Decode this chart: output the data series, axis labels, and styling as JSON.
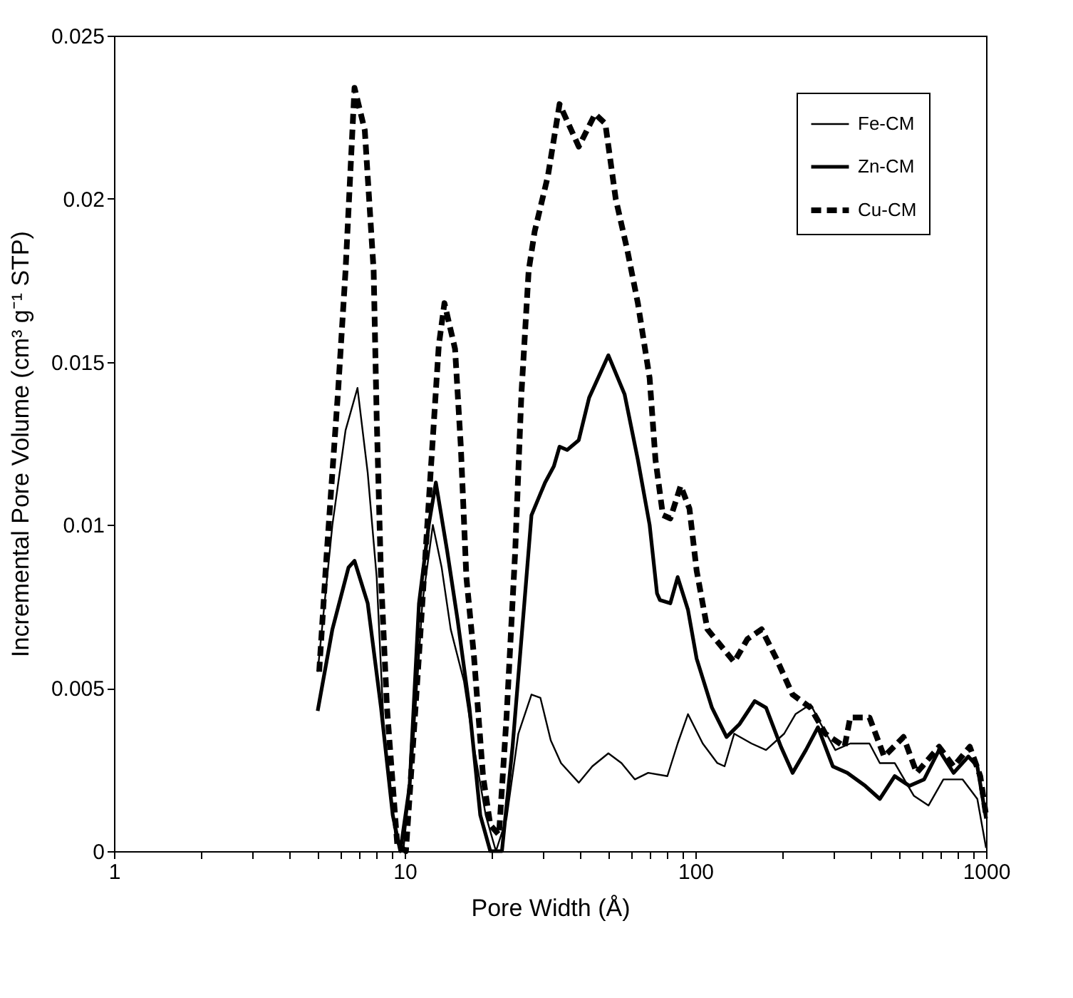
{
  "chart_data": {
    "type": "line",
    "xlabel": "Pore Width (Å)",
    "ylabel": "Incremental Pore Volume (cm³ g⁻¹ STP)",
    "log": "x",
    "xlim": [
      1,
      1000
    ],
    "ylim": [
      0,
      0.025
    ],
    "xticks": [
      1,
      {
        "value": 2,
        "label": null
      },
      {
        "value": 3,
        "label": null
      },
      {
        "value": 4,
        "label": null
      },
      {
        "value": 5,
        "label": null
      },
      {
        "value": 6,
        "label": null
      },
      {
        "value": 7,
        "label": null
      },
      {
        "value": 8,
        "label": null
      },
      {
        "value": 9,
        "label": null
      },
      10,
      {
        "value": 20,
        "label": null
      },
      {
        "value": 30,
        "label": null
      },
      {
        "value": 40,
        "label": null
      },
      {
        "value": 50,
        "label": null
      },
      {
        "value": 60,
        "label": null
      },
      {
        "value": 70,
        "label": null
      },
      {
        "value": 80,
        "label": null
      },
      {
        "value": 90,
        "label": null
      },
      100,
      {
        "value": 200,
        "label": null
      },
      {
        "value": 300,
        "label": null
      },
      {
        "value": 400,
        "label": null
      },
      {
        "value": 500,
        "label": null
      },
      {
        "value": 600,
        "label": null
      },
      {
        "value": 700,
        "label": null
      },
      {
        "value": 800,
        "label": null
      },
      {
        "value": 900,
        "label": null
      },
      1000
    ],
    "yticks": [
      0,
      0.005,
      0.01,
      0.015,
      0.02,
      0.025
    ],
    "grid": false,
    "legend": "top right",
    "series": [
      {
        "name": "Fe-CM",
        "color": "#000000",
        "line_style": "solid",
        "x": [
          5.02,
          5.64,
          6.26,
          6.88,
          7.46,
          8.01,
          8.49,
          9.33,
          9.89,
          10.6,
          11.5,
          12.5,
          13.4,
          14.4,
          16.0,
          17.3,
          19.0,
          20.6,
          22.4,
          24.6,
          27.3,
          29.3,
          31.8,
          34.5,
          39.7,
          44.2,
          50.2,
          55.7,
          61.9,
          68.8,
          80.1,
          86.9,
          94.3,
          106,
          119,
          126,
          136,
          156,
          175,
          202,
          221,
          249,
          270,
          303,
          341,
          397,
          431,
          485,
          564,
          634,
          713,
          830,
          933,
          1000
        ],
        "values": [
          0.0055,
          0.01,
          0.0129,
          0.0142,
          0.0116,
          0.0084,
          0.0036,
          0.0003,
          0,
          0.0027,
          0.0076,
          0.01,
          0.0087,
          0.0068,
          0.0052,
          0.0032,
          0.0011,
          0,
          0.001,
          0.0036,
          0.0048,
          0.0047,
          0.0034,
          0.0027,
          0.0021,
          0.0026,
          0.003,
          0.0027,
          0.0022,
          0.0024,
          0.0023,
          0.0033,
          0.0042,
          0.0033,
          0.0027,
          0.0026,
          0.0036,
          0.0033,
          0.0031,
          0.0036,
          0.0042,
          0.0045,
          0.0039,
          0.0031,
          0.0033,
          0.0033,
          0.0027,
          0.0027,
          0.0017,
          0.0014,
          0.0022,
          0.0022,
          0.0016,
          0.0001
        ]
      },
      {
        "name": "Zn-CM",
        "color": "#000000",
        "line_style": "solid",
        "x": [
          5.02,
          5.64,
          6.41,
          6.72,
          7.46,
          8.29,
          9.1,
          9.66,
          10.4,
          11.2,
          12.1,
          12.8,
          14.0,
          15.2,
          16.7,
          18.2,
          19.7,
          21.6,
          23.5,
          25.8,
          27.3,
          30.4,
          32.6,
          34.1,
          36.2,
          39.7,
          43.1,
          50.2,
          57.1,
          63.4,
          69.6,
          73.8,
          75.5,
          82.0,
          86.9,
          94.3,
          101,
          114,
          128,
          142,
          160,
          175,
          197,
          216,
          240,
          264,
          297,
          333,
          384,
          431,
          485,
          545,
          612,
          689,
          773,
          869,
          933,
          1000
        ],
        "values": [
          0.0043,
          0.0068,
          0.0087,
          0.0089,
          0.0076,
          0.0044,
          0.0011,
          0,
          0.002,
          0.0076,
          0.01,
          0.0113,
          0.0092,
          0.0071,
          0.0044,
          0.0011,
          0,
          0,
          0.0032,
          0.0076,
          0.0103,
          0.0113,
          0.0118,
          0.0124,
          0.0123,
          0.0126,
          0.0139,
          0.0152,
          0.014,
          0.012,
          0.01,
          0.0079,
          0.0077,
          0.0076,
          0.0084,
          0.0074,
          0.0059,
          0.0044,
          0.0035,
          0.0039,
          0.0046,
          0.0044,
          0.0032,
          0.0024,
          0.0031,
          0.0038,
          0.0026,
          0.0024,
          0.002,
          0.0016,
          0.0023,
          0.002,
          0.0022,
          0.0031,
          0.0024,
          0.0029,
          0.0026,
          0.001
        ]
      },
      {
        "name": "Cu-CM",
        "color": "#000000",
        "line_style": "dashed",
        "x": [
          5.08,
          5.38,
          5.91,
          6.26,
          6.72,
          7.29,
          7.82,
          8.01,
          8.29,
          8.69,
          9.43,
          10.1,
          11.2,
          12.3,
          13.1,
          13.7,
          14.9,
          15.6,
          16.3,
          17.3,
          18.6,
          19.7,
          21.1,
          22.4,
          24.0,
          25.2,
          26.7,
          28.0,
          31.1,
          34.1,
          39.7,
          45.2,
          49.0,
          53.2,
          58.4,
          63.4,
          69.6,
          72.9,
          77.3,
          82.0,
          89.0,
          95.4,
          101,
          110,
          136,
          151,
          169,
          190,
          216,
          249,
          280,
          326,
          341,
          397,
          446,
          520,
          577,
          689,
          773,
          879,
          955,
          1000
        ],
        "values": [
          0.0055,
          0.009,
          0.0142,
          0.0178,
          0.0234,
          0.0221,
          0.0178,
          0.0133,
          0.0084,
          0.0044,
          0.0002,
          0,
          0.006,
          0.0117,
          0.0155,
          0.0168,
          0.0154,
          0.0124,
          0.0084,
          0.006,
          0.0023,
          0.0008,
          0.0005,
          0.0041,
          0.0092,
          0.014,
          0.0178,
          0.019,
          0.0207,
          0.0229,
          0.0216,
          0.0226,
          0.0223,
          0.02,
          0.0184,
          0.0168,
          0.0145,
          0.012,
          0.0103,
          0.0102,
          0.0112,
          0.0105,
          0.0086,
          0.0068,
          0.0058,
          0.0065,
          0.0068,
          0.0059,
          0.0048,
          0.0044,
          0.0036,
          0.0032,
          0.0041,
          0.0041,
          0.0029,
          0.0035,
          0.0024,
          0.0032,
          0.0026,
          0.0032,
          0.0023,
          0.0011
        ]
      }
    ]
  }
}
